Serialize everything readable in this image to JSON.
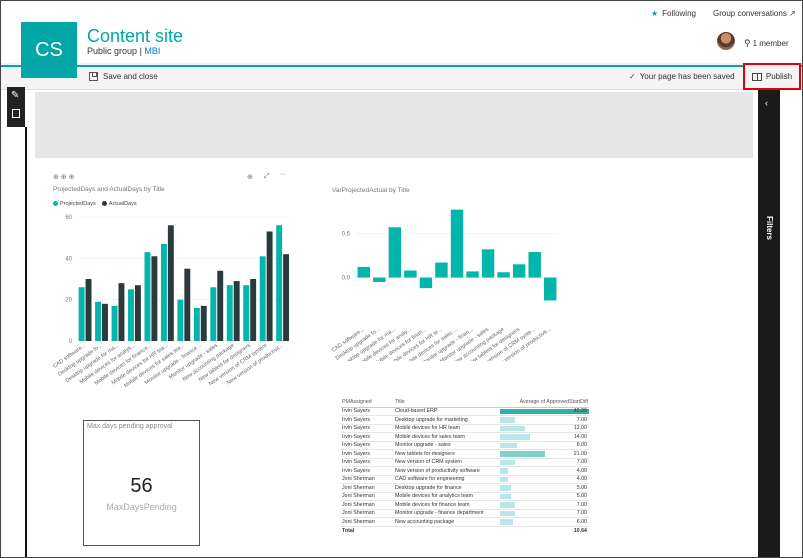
{
  "header": {
    "logo_text": "CS",
    "site_title": "Content site",
    "site_subtitle_group": "Public group",
    "site_subtitle_sep": "|",
    "site_subtitle_link": "MBI",
    "following_label": "Following",
    "group_conversations_label": "Group conversations ↗",
    "member_label": "1 member"
  },
  "commandbar": {
    "save_close_label": "Save and close",
    "saved_message": "Your page has been saved",
    "publish_label": "Publish"
  },
  "filters_pane": {
    "label": "Filters",
    "collapse_glyph": "‹"
  },
  "icons": {
    "following": "star-icon",
    "external": "external-link-icon",
    "member": "person-icon",
    "save": "save-icon",
    "saved": "checkmark-icon",
    "publish": "book-icon",
    "edit": "pencil-icon",
    "delete": "trash-icon"
  },
  "colors": {
    "accent": "#03a6a6",
    "dark_series": "#2b3b3b",
    "highlight_border": "#e00010"
  },
  "chart_data": [
    {
      "type": "bar",
      "title": "ProjectedDays and ActualDays by Title",
      "ylim": [
        0,
        60
      ],
      "yticks": [
        0,
        20,
        40,
        60
      ],
      "categories": [
        "CAD software...",
        "Desktop upgrade fo...",
        "Desktop upgrade for ma...",
        "Mobile devices for analyti...",
        "Mobile devices for finance...",
        "Mobile devices for HR tea...",
        "Mobile devices for sales tea...",
        "Monitor upgrade - finance...",
        "Monitor upgrade - sales",
        "New accounting package",
        "New tablets for designers",
        "New version of CRM system",
        "New version of productivit..."
      ],
      "series": [
        {
          "name": "ProjectedDays",
          "color": "#03b5aa",
          "values": [
            26,
            19,
            17,
            25,
            43,
            47,
            20,
            16,
            26,
            27,
            27,
            41,
            56
          ]
        },
        {
          "name": "ActualDays",
          "color": "#2b3b3b",
          "values": [
            30,
            18,
            28,
            27,
            41,
            56,
            35,
            17,
            34,
            29,
            30,
            53,
            42
          ]
        }
      ]
    },
    {
      "type": "bar",
      "title": "VarProjectedActual by Title",
      "ylim": [
        -0.3,
        0.8
      ],
      "yticks": [
        0.0,
        0.5
      ],
      "ytick_labels": [
        "0.0",
        "0.5"
      ],
      "categories": [
        "CAD software...",
        "Desktop upgrade fo...",
        "Desktop upgrade for ma...",
        "Mobile devices for analy...",
        "Mobile devices for finan...",
        "Mobile devices for HR te...",
        "Mobile devices for sales ...",
        "Monitor upgrade - finan...",
        "Monitor upgrade - sales",
        "New accounting package",
        "New tablets for designers",
        "New version of CRM syste...",
        "New version of productivit..."
      ],
      "series": [
        {
          "color": "#03b5aa",
          "values": [
            0.12,
            -0.05,
            0.57,
            0.08,
            -0.12,
            0.17,
            0.77,
            0.07,
            0.32,
            0.06,
            0.15,
            0.29,
            -0.26
          ]
        }
      ]
    },
    {
      "type": "table",
      "columns": [
        "PMAssigned",
        "Title",
        "Average of ApprovedStartDiff"
      ],
      "rows": [
        [
          "Irvin Sayers",
          "Cloud-based ERP",
          "42.00"
        ],
        [
          "Irvin Sayers",
          "Desktop upgrade for marketing",
          "7.00"
        ],
        [
          "Irvin Sayers",
          "Mobile devices for HR team",
          "12.00"
        ],
        [
          "Irvin Sayers",
          "Mobile devices for sales team",
          "14.00"
        ],
        [
          "Irvin Sayers",
          "Monitor upgrade - sales",
          "8.00"
        ],
        [
          "Irvin Sayers",
          "New tablets for designers",
          "21.00"
        ],
        [
          "Irvin Sayers",
          "New version of CRM system",
          "7.00"
        ],
        [
          "Irvin Sayers",
          "New version of productivity software",
          "4.00"
        ],
        [
          "Joni Sherman",
          "CAD software for engineering",
          "4.00"
        ],
        [
          "Joni Sherman",
          "Desktop upgrade for finance",
          "5.00"
        ],
        [
          "Joni Sherman",
          "Mobile devices for analytics team",
          "5.00"
        ],
        [
          "Joni Sherman",
          "Mobile devices for finance team",
          "7.00"
        ],
        [
          "Joni Sherman",
          "Monitor upgrade - finance department",
          "7.00"
        ],
        [
          "Joni Sherman",
          "New accounting package",
          "6.00"
        ]
      ],
      "total": [
        "Total",
        "",
        "10.64"
      ]
    }
  ],
  "card": {
    "title": "Max days pending approval",
    "value": "56",
    "label": "MaxDaysPending"
  }
}
